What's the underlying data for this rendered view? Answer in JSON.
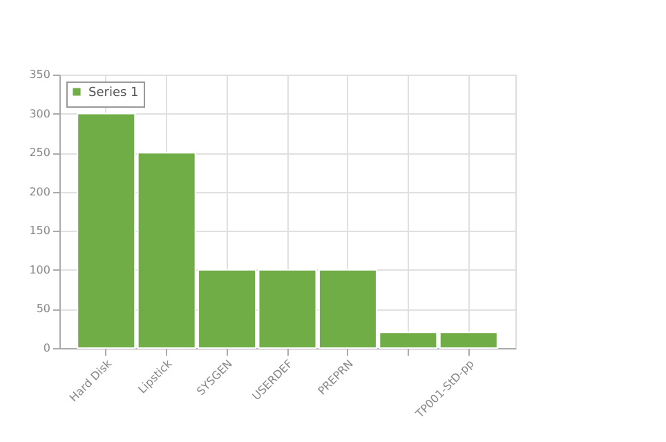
{
  "chart_data": {
    "type": "bar",
    "categories": [
      "Hard Disk",
      "Lipstick",
      "SYSGEN",
      "USERDEF",
      "PREPRN",
      null,
      "TP001-StD-pp"
    ],
    "series": [
      {
        "name": "Series 1",
        "color": "#70ad47",
        "values": [
          300,
          250,
          100,
          100,
          100,
          20,
          20
        ]
      }
    ],
    "ylim": [
      0,
      350
    ],
    "yticks": [
      0,
      50,
      100,
      150,
      200,
      250,
      300,
      350
    ],
    "grid": true,
    "legend": "top left"
  }
}
